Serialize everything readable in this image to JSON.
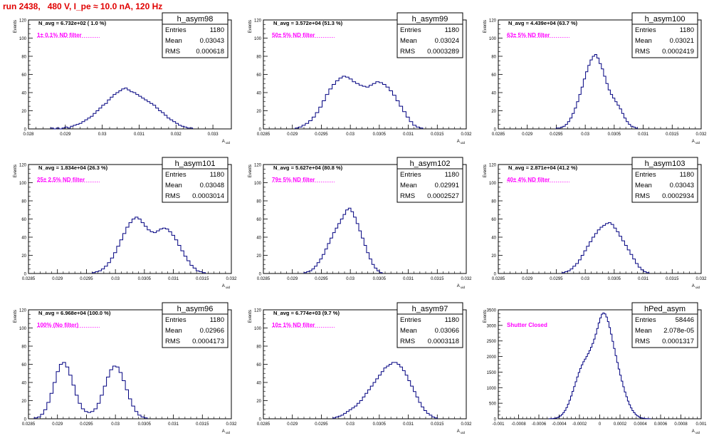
{
  "page": {
    "title": "run 2438,   480 V, I_pe ≈ 10.0 nA, 120 Hz"
  },
  "styles": {
    "histogram_color": "#000080",
    "label_color": "#ff00ff",
    "title_color": "#e00000",
    "axis_color": "#000000",
    "stats_border": "#000000"
  },
  "chart_data": [
    {
      "type": "bar",
      "name": "h_asym98",
      "stats": {
        "entries_label": "Entries",
        "entries": "1180",
        "mean_label": "Mean",
        "mean": "0.03043",
        "rms_label": "RMS",
        "rms": "0.000618"
      },
      "n_avg_text": "N_avg = 6.732e+02 ( 1.0 %)",
      "filter_text": "1± 0.1% ND filter",
      "xlabel": "A_uid",
      "ylabel": "Events",
      "xlim": [
        0.028,
        0.0335
      ],
      "ylim": [
        0,
        120
      ],
      "xticks": [
        0.028,
        0.029,
        0.03,
        0.031,
        0.032,
        0.033
      ],
      "xtick_labels": [
        "0.028",
        "0.029",
        "0.03",
        "0.031",
        "0.032",
        "0.033"
      ],
      "yticks": [
        0,
        20,
        40,
        60,
        80,
        100,
        120
      ],
      "ytick_labels": [
        "0",
        "20",
        "40",
        "60",
        "80",
        "100",
        "120"
      ],
      "bin_edges": [
        0.0286,
        0.03245
      ],
      "counts": [
        1,
        0,
        1,
        0,
        1,
        2,
        1,
        3,
        4,
        5,
        6,
        8,
        10,
        12,
        14,
        17,
        20,
        23,
        26,
        28,
        32,
        35,
        38,
        40,
        42,
        44,
        45,
        43,
        41,
        40,
        38,
        36,
        34,
        32,
        30,
        28,
        26,
        23,
        20,
        18,
        15,
        12,
        10,
        8,
        6,
        4,
        3,
        2,
        1,
        1
      ]
    },
    {
      "type": "bar",
      "name": "h_asym99",
      "stats": {
        "entries_label": "Entries",
        "entries": "1180",
        "mean_label": "Mean",
        "mean": "0.03024",
        "rms_label": "RMS",
        "rms": "0.0003289"
      },
      "n_avg_text": "N_avg = 3.572e+04 (51.3 %)",
      "filter_text": "50± 5% ND filter",
      "xlabel": "A_uid",
      "ylabel": "Events",
      "xlim": [
        0.0285,
        0.032
      ],
      "ylim": [
        0,
        120
      ],
      "xticks": [
        0.0285,
        0.029,
        0.0295,
        0.03,
        0.0305,
        0.031,
        0.0315,
        0.032
      ],
      "xtick_labels": [
        "0.0285",
        "0.029",
        "0.0295",
        "0.03",
        "0.0305",
        "0.031",
        "0.0315",
        "0.032"
      ],
      "yticks": [
        0,
        20,
        40,
        60,
        80,
        100,
        120
      ],
      "ytick_labels": [
        "0",
        "20",
        "40",
        "60",
        "80",
        "100",
        "120"
      ],
      "bin_edges": [
        0.02905,
        0.03125
      ],
      "counts": [
        1,
        2,
        4,
        6,
        9,
        13,
        18,
        24,
        31,
        38,
        44,
        49,
        53,
        56,
        58,
        57,
        55,
        52,
        50,
        48,
        47,
        46,
        48,
        50,
        52,
        51,
        49,
        46,
        42,
        37,
        31,
        25,
        19,
        13,
        8,
        4,
        2,
        1
      ]
    },
    {
      "type": "bar",
      "name": "h_asym100",
      "stats": {
        "entries_label": "Entries",
        "entries": "1180",
        "mean_label": "Mean",
        "mean": "0.03021",
        "rms_label": "RMS",
        "rms": "0.0002419"
      },
      "n_avg_text": "N_avg = 4.439e+04 (63.7 %)",
      "filter_text": "63± 5% ND filter",
      "xlabel": "A_uid",
      "ylabel": "Events",
      "xlim": [
        0.0285,
        0.032
      ],
      "ylim": [
        0,
        120
      ],
      "xticks": [
        0.0285,
        0.029,
        0.0295,
        0.03,
        0.0305,
        0.031,
        0.0315,
        0.032
      ],
      "xtick_labels": [
        "0.0285",
        "0.029",
        "0.0295",
        "0.03",
        "0.0305",
        "0.031",
        "0.0315",
        "0.032"
      ],
      "yticks": [
        0,
        20,
        40,
        60,
        80,
        100,
        120
      ],
      "ytick_labels": [
        "0",
        "20",
        "40",
        "60",
        "80",
        "100",
        "120"
      ],
      "bin_edges": [
        0.0295,
        0.0309
      ],
      "counts": [
        1,
        1,
        2,
        3,
        5,
        8,
        12,
        17,
        23,
        30,
        38,
        46,
        55,
        63,
        70,
        76,
        80,
        82,
        78,
        72,
        66,
        58,
        50,
        43,
        38,
        34,
        30,
        26,
        22,
        17,
        12,
        8,
        5,
        3,
        2,
        1
      ]
    },
    {
      "type": "bar",
      "name": "h_asym101",
      "stats": {
        "entries_label": "Entries",
        "entries": "1180",
        "mean_label": "Mean",
        "mean": "0.03048",
        "rms_label": "RMS",
        "rms": "0.0003014"
      },
      "n_avg_text": "N_avg = 1.834e+04 (26.3 %)",
      "filter_text": "25± 2.5% ND filter",
      "xlabel": "A_uid",
      "ylabel": "Events",
      "xlim": [
        0.0285,
        0.032
      ],
      "ylim": [
        0,
        120
      ],
      "xticks": [
        0.0285,
        0.029,
        0.0295,
        0.03,
        0.0305,
        0.031,
        0.0315,
        0.032
      ],
      "xtick_labels": [
        "0.0285",
        "0.029",
        "0.0295",
        "0.03",
        "0.0305",
        "0.031",
        "0.0315",
        "0.032"
      ],
      "yticks": [
        0,
        20,
        40,
        60,
        80,
        100,
        120
      ],
      "ytick_labels": [
        "0",
        "20",
        "40",
        "60",
        "80",
        "100",
        "120"
      ],
      "bin_edges": [
        0.0296,
        0.03155
      ],
      "counts": [
        1,
        2,
        3,
        5,
        8,
        12,
        17,
        23,
        30,
        37,
        44,
        51,
        56,
        60,
        62,
        60,
        56,
        52,
        48,
        46,
        45,
        47,
        49,
        50,
        49,
        46,
        42,
        37,
        31,
        25,
        19,
        14,
        9,
        6,
        3,
        2,
        1
      ]
    },
    {
      "type": "bar",
      "name": "h_asym102",
      "stats": {
        "entries_label": "Entries",
        "entries": "1180",
        "mean_label": "Mean",
        "mean": "0.02991",
        "rms_label": "RMS",
        "rms": "0.0002527"
      },
      "n_avg_text": "N_avg = 5.627e+04 (80.8 %)",
      "filter_text": "79± 5% ND filter",
      "xlabel": "A_uid",
      "ylabel": "Events",
      "xlim": [
        0.0285,
        0.032
      ],
      "ylim": [
        0,
        120
      ],
      "xticks": [
        0.0285,
        0.029,
        0.0295,
        0.03,
        0.0305,
        0.031,
        0.0315,
        0.032
      ],
      "xtick_labels": [
        "0.0285",
        "0.029",
        "0.0295",
        "0.03",
        "0.0305",
        "0.031",
        "0.0315",
        "0.032"
      ],
      "yticks": [
        0,
        20,
        40,
        60,
        80,
        100,
        120
      ],
      "ytick_labels": [
        "0",
        "20",
        "40",
        "60",
        "80",
        "100",
        "120"
      ],
      "bin_edges": [
        0.0292,
        0.03055
      ],
      "counts": [
        1,
        2,
        3,
        5,
        8,
        12,
        16,
        21,
        27,
        33,
        39,
        45,
        50,
        55,
        60,
        65,
        70,
        72,
        68,
        62,
        55,
        47,
        39,
        31,
        23,
        16,
        10,
        6,
        3,
        1
      ]
    },
    {
      "type": "bar",
      "name": "h_asym103",
      "stats": {
        "entries_label": "Entries",
        "entries": "1180",
        "mean_label": "Mean",
        "mean": "0.03043",
        "rms_label": "RMS",
        "rms": "0.0002934"
      },
      "n_avg_text": "N_avg = 2.871e+04 (41.2 %)",
      "filter_text": "40± 4% ND filter",
      "xlabel": "A_uid",
      "ylabel": "Events",
      "xlim": [
        0.0285,
        0.032
      ],
      "ylim": [
        0,
        120
      ],
      "xticks": [
        0.0285,
        0.029,
        0.0295,
        0.03,
        0.0305,
        0.031,
        0.0315,
        0.032
      ],
      "xtick_labels": [
        "0.0285",
        "0.029",
        "0.0295",
        "0.03",
        "0.0305",
        "0.031",
        "0.0315",
        "0.032"
      ],
      "yticks": [
        0,
        20,
        40,
        60,
        80,
        100,
        120
      ],
      "ytick_labels": [
        "0",
        "20",
        "40",
        "60",
        "80",
        "100",
        "120"
      ],
      "bin_edges": [
        0.0296,
        0.0311
      ],
      "counts": [
        1,
        2,
        3,
        5,
        8,
        11,
        15,
        20,
        25,
        30,
        35,
        40,
        44,
        48,
        51,
        53,
        55,
        56,
        54,
        50,
        46,
        41,
        36,
        31,
        26,
        21,
        16,
        11,
        7,
        4,
        2,
        1
      ]
    },
    {
      "type": "bar",
      "name": "h_asym96",
      "stats": {
        "entries_label": "Entries",
        "entries": "1180",
        "mean_label": "Mean",
        "mean": "0.02966",
        "rms_label": "RMS",
        "rms": "0.0004173"
      },
      "n_avg_text": "N_avg = 6.968e+04 (100.0 %)",
      "filter_text": "100% (No filter)",
      "xlabel": "A_uid",
      "ylabel": "Events",
      "xlim": [
        0.0285,
        0.032
      ],
      "ylim": [
        0,
        120
      ],
      "xticks": [
        0.0285,
        0.029,
        0.0295,
        0.03,
        0.0305,
        0.031,
        0.0315,
        0.032
      ],
      "xtick_labels": [
        "0.0285",
        "0.029",
        "0.0295",
        "0.03",
        "0.0305",
        "0.031",
        "0.0315",
        "0.032"
      ],
      "yticks": [
        0,
        20,
        40,
        60,
        80,
        100,
        120
      ],
      "ytick_labels": [
        "0",
        "20",
        "40",
        "60",
        "80",
        "100",
        "120"
      ],
      "bin_edges": [
        0.0286,
        0.03055
      ],
      "counts": [
        1,
        2,
        5,
        10,
        18,
        28,
        40,
        52,
        60,
        62,
        57,
        48,
        37,
        26,
        17,
        11,
        8,
        7,
        8,
        11,
        17,
        26,
        36,
        46,
        54,
        58,
        57,
        51,
        42,
        32,
        22,
        14,
        8,
        4,
        2,
        1
      ]
    },
    {
      "type": "bar",
      "name": "h_asym97",
      "stats": {
        "entries_label": "Entries",
        "entries": "1180",
        "mean_label": "Mean",
        "mean": "0.03066",
        "rms_label": "RMS",
        "rms": "0.0003118"
      },
      "n_avg_text": "N_avg = 6.774e+03 (9.7 %)",
      "filter_text": "10± 1% ND filter",
      "xlabel": "A_uid",
      "ylabel": "Events",
      "xlim": [
        0.0285,
        0.032
      ],
      "ylim": [
        0,
        120
      ],
      "xticks": [
        0.0285,
        0.029,
        0.0295,
        0.03,
        0.0305,
        0.031,
        0.0315,
        0.032
      ],
      "xtick_labels": [
        "0.0285",
        "0.029",
        "0.0295",
        "0.03",
        "0.0305",
        "0.031",
        "0.0315",
        "0.032"
      ],
      "yticks": [
        0,
        20,
        40,
        60,
        80,
        100,
        120
      ],
      "ytick_labels": [
        "0",
        "20",
        "40",
        "60",
        "80",
        "100",
        "120"
      ],
      "bin_edges": [
        0.0297,
        0.0315
      ],
      "counts": [
        1,
        2,
        3,
        4,
        6,
        8,
        10,
        12,
        14,
        17,
        20,
        24,
        28,
        32,
        36,
        40,
        44,
        48,
        52,
        56,
        58,
        60,
        62,
        62,
        60,
        57,
        53,
        48,
        42,
        36,
        30,
        24,
        18,
        13,
        9,
        6,
        4,
        2,
        1
      ]
    },
    {
      "type": "bar",
      "name": "hPed_asym",
      "stats": {
        "entries_label": "Entries",
        "entries": "58446",
        "mean_label": "Mean",
        "mean": "2.078e-05",
        "rms_label": "RMS",
        "rms": "0.0001317"
      },
      "n_avg_text": "",
      "filter_text": "Shutter Closed",
      "xlabel": "A_uid",
      "ylabel": "Events",
      "xlim": [
        -0.001,
        0.001
      ],
      "ylim": [
        0,
        3500
      ],
      "xticks": [
        -0.001,
        -0.0008,
        -0.0006,
        -0.0004,
        -0.0002,
        0,
        0.0002,
        0.0004,
        0.0006,
        0.0008,
        0.001
      ],
      "xtick_labels": [
        "-0.001",
        "-0.0008",
        "-0.0006",
        "-0.0004",
        "-0.0002",
        "0",
        "0.0002",
        "0.0004",
        "0.0006",
        "0.0008",
        "0.001"
      ],
      "yticks": [
        0,
        500,
        1000,
        1500,
        2000,
        2500,
        3000,
        3500
      ],
      "ytick_labels": [
        "0",
        "500",
        "1000",
        "1500",
        "2000",
        "2500",
        "3000",
        "3500"
      ],
      "bin_edges": [
        -0.0005,
        0.0005
      ],
      "counts": [
        2,
        4,
        8,
        14,
        24,
        40,
        62,
        94,
        138,
        196,
        270,
        362,
        470,
        594,
        732,
        880,
        1034,
        1190,
        1342,
        1486,
        1616,
        1732,
        1832,
        1918,
        2000,
        2090,
        2190,
        2300,
        2420,
        2560,
        2720,
        2900,
        3080,
        3240,
        3360,
        3400,
        3370,
        3270,
        3120,
        2930,
        2720,
        2490,
        2260,
        2030,
        1810,
        1600,
        1400,
        1210,
        1030,
        860,
        710,
        570,
        450,
        350,
        264,
        194,
        138,
        96,
        64,
        42,
        26,
        16,
        10,
        6,
        3,
        2
      ]
    }
  ]
}
